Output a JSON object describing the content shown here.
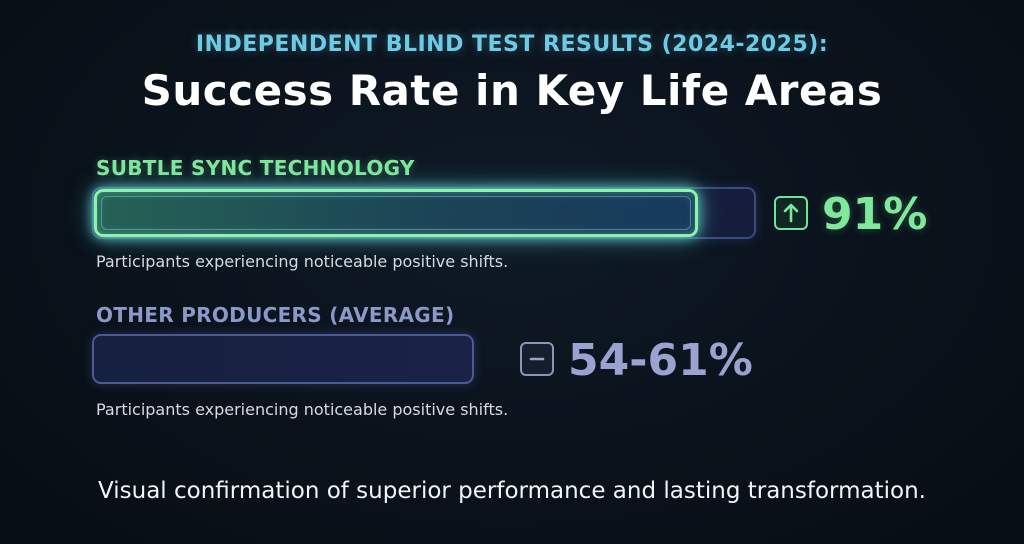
{
  "header": {
    "kicker": "INDEPENDENT BLIND TEST RESULTS (2024-2025):",
    "title": "Success Rate in Key Life Areas"
  },
  "chart_data": {
    "type": "bar",
    "orientation": "horizontal",
    "title": "Success Rate in Key Life Areas",
    "subtitle": "INDEPENDENT BLIND TEST RESULTS (2024-2025):",
    "unit": "%",
    "xlim": [
      0,
      100
    ],
    "grid": false,
    "series": [
      {
        "name": "SUBTLE SYNC TECHNOLOGY",
        "value": 91,
        "value_label": "91%",
        "note": "Participants experiencing noticeable positive shifts.",
        "icon": "arrow-up-icon",
        "color": "#7fe89a"
      },
      {
        "name": "OTHER PRODUCERS (AVERAGE)",
        "range": [
          54,
          61
        ],
        "value_label": "54-61%",
        "note": "Participants experiencing noticeable positive shifts.",
        "icon": "minus-icon",
        "color": "#9aa2cf"
      }
    ]
  },
  "footer": {
    "text": "Visual confirmation of superior performance and lasting transformation."
  }
}
